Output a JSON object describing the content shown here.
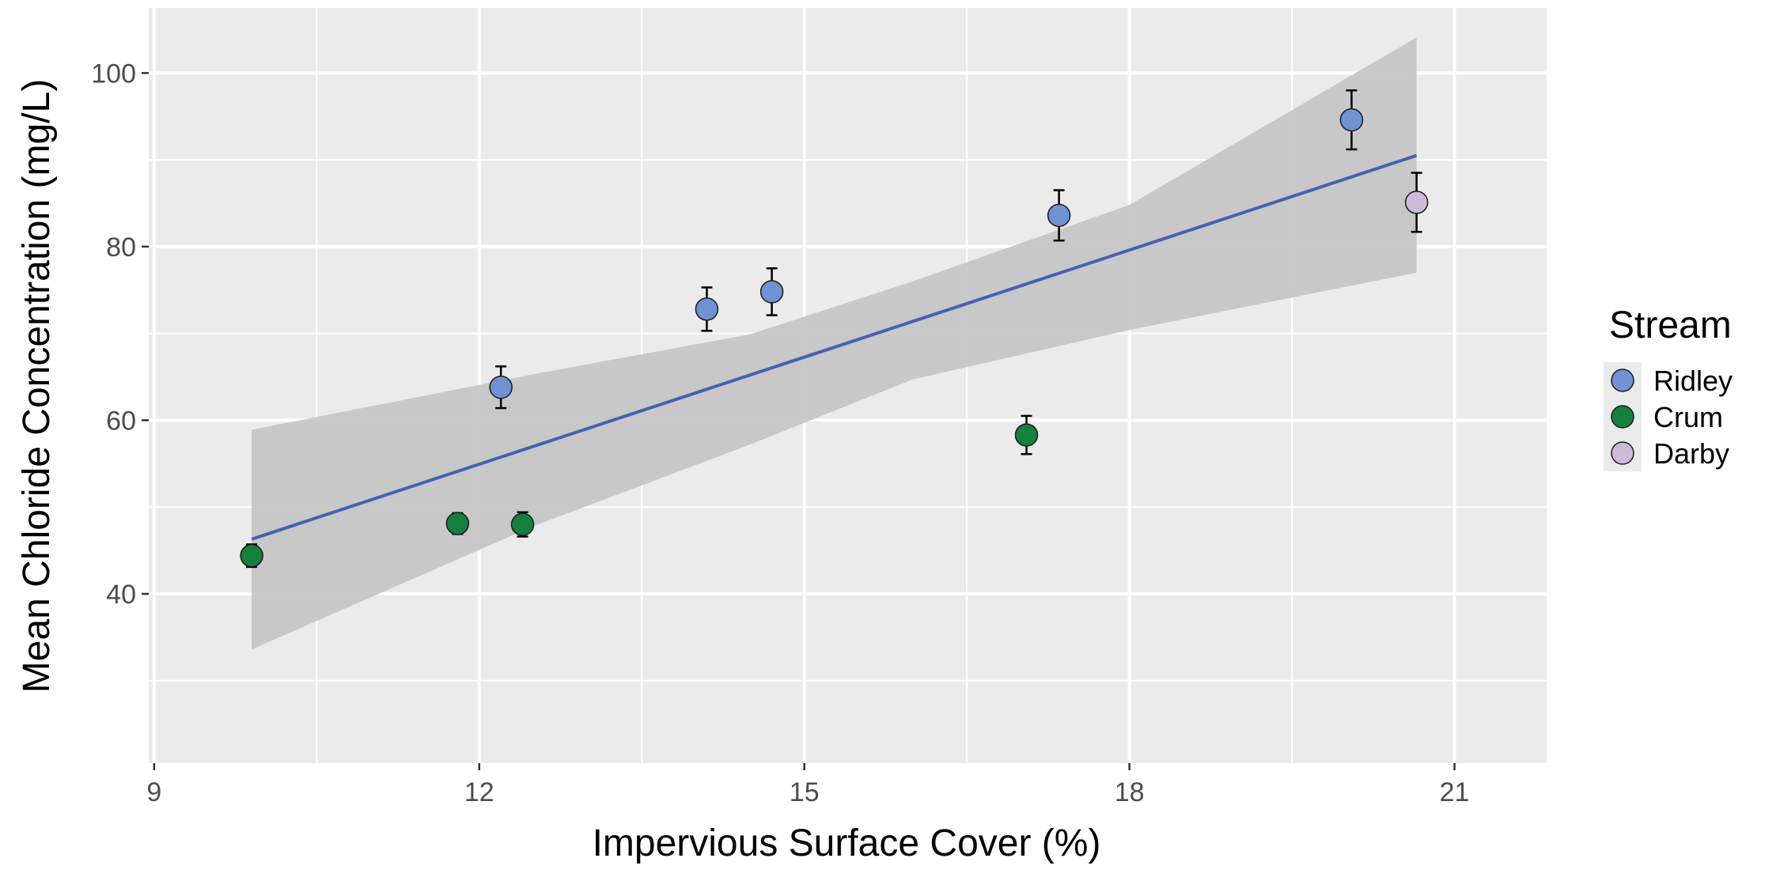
{
  "chart_data": {
    "type": "scatter",
    "title": "",
    "xlabel": "Impervious Surface Cover (%)",
    "ylabel": "Mean Chloride Concentration (mg/L)",
    "xlim": [
      8.95,
      21.85
    ],
    "ylim": [
      20.5,
      107.5
    ],
    "x_ticks": [
      9,
      12,
      15,
      18,
      21
    ],
    "x_tick_labels": [
      "9",
      "12",
      "15",
      "18",
      "21"
    ],
    "y_ticks": [
      40,
      60,
      80,
      100
    ],
    "y_tick_labels": [
      "40",
      "60",
      "80",
      "100"
    ],
    "grid": true,
    "legend": {
      "title": "Stream",
      "placement": "right",
      "entries": [
        {
          "name": "Ridley",
          "color": "#7092d2"
        },
        {
          "name": "Crum",
          "color": "#13803d"
        },
        {
          "name": "Darby",
          "color": "#cdbad8"
        }
      ]
    },
    "series": [
      {
        "name": "Ridley",
        "color": "#7092d2",
        "points": [
          {
            "x": 12.2,
            "y": 63.8,
            "err": 2.4
          },
          {
            "x": 14.1,
            "y": 72.8,
            "err": 2.5
          },
          {
            "x": 14.7,
            "y": 74.8,
            "err": 2.7
          },
          {
            "x": 17.35,
            "y": 83.6,
            "err": 2.9
          },
          {
            "x": 20.05,
            "y": 94.6,
            "err": 3.4
          }
        ]
      },
      {
        "name": "Crum",
        "color": "#13803d",
        "points": [
          {
            "x": 9.9,
            "y": 44.4,
            "err": 1.3
          },
          {
            "x": 11.8,
            "y": 48.1,
            "err": 1.2
          },
          {
            "x": 12.4,
            "y": 48.0,
            "err": 1.4
          },
          {
            "x": 17.05,
            "y": 58.3,
            "err": 2.2
          }
        ]
      },
      {
        "name": "Darby",
        "color": "#cdbad8",
        "points": [
          {
            "x": 20.65,
            "y": 85.1,
            "err": 3.4
          }
        ]
      }
    ],
    "fit": {
      "color": "#4462b4",
      "band_color": "#c6c6c6",
      "line": [
        [
          9.9,
          46.3
        ],
        [
          20.65,
          90.5
        ]
      ],
      "band_upper": [
        [
          9.9,
          58.9
        ],
        [
          12.5,
          65.3
        ],
        [
          14.5,
          69.9
        ],
        [
          16.0,
          76.0
        ],
        [
          18.0,
          84.8
        ],
        [
          20.65,
          104.1
        ]
      ],
      "band_lower": [
        [
          9.9,
          33.6
        ],
        [
          12.5,
          47.8
        ],
        [
          14.5,
          57.2
        ],
        [
          16.0,
          64.7
        ],
        [
          18.0,
          70.4
        ],
        [
          20.65,
          77.0
        ]
      ]
    }
  }
}
